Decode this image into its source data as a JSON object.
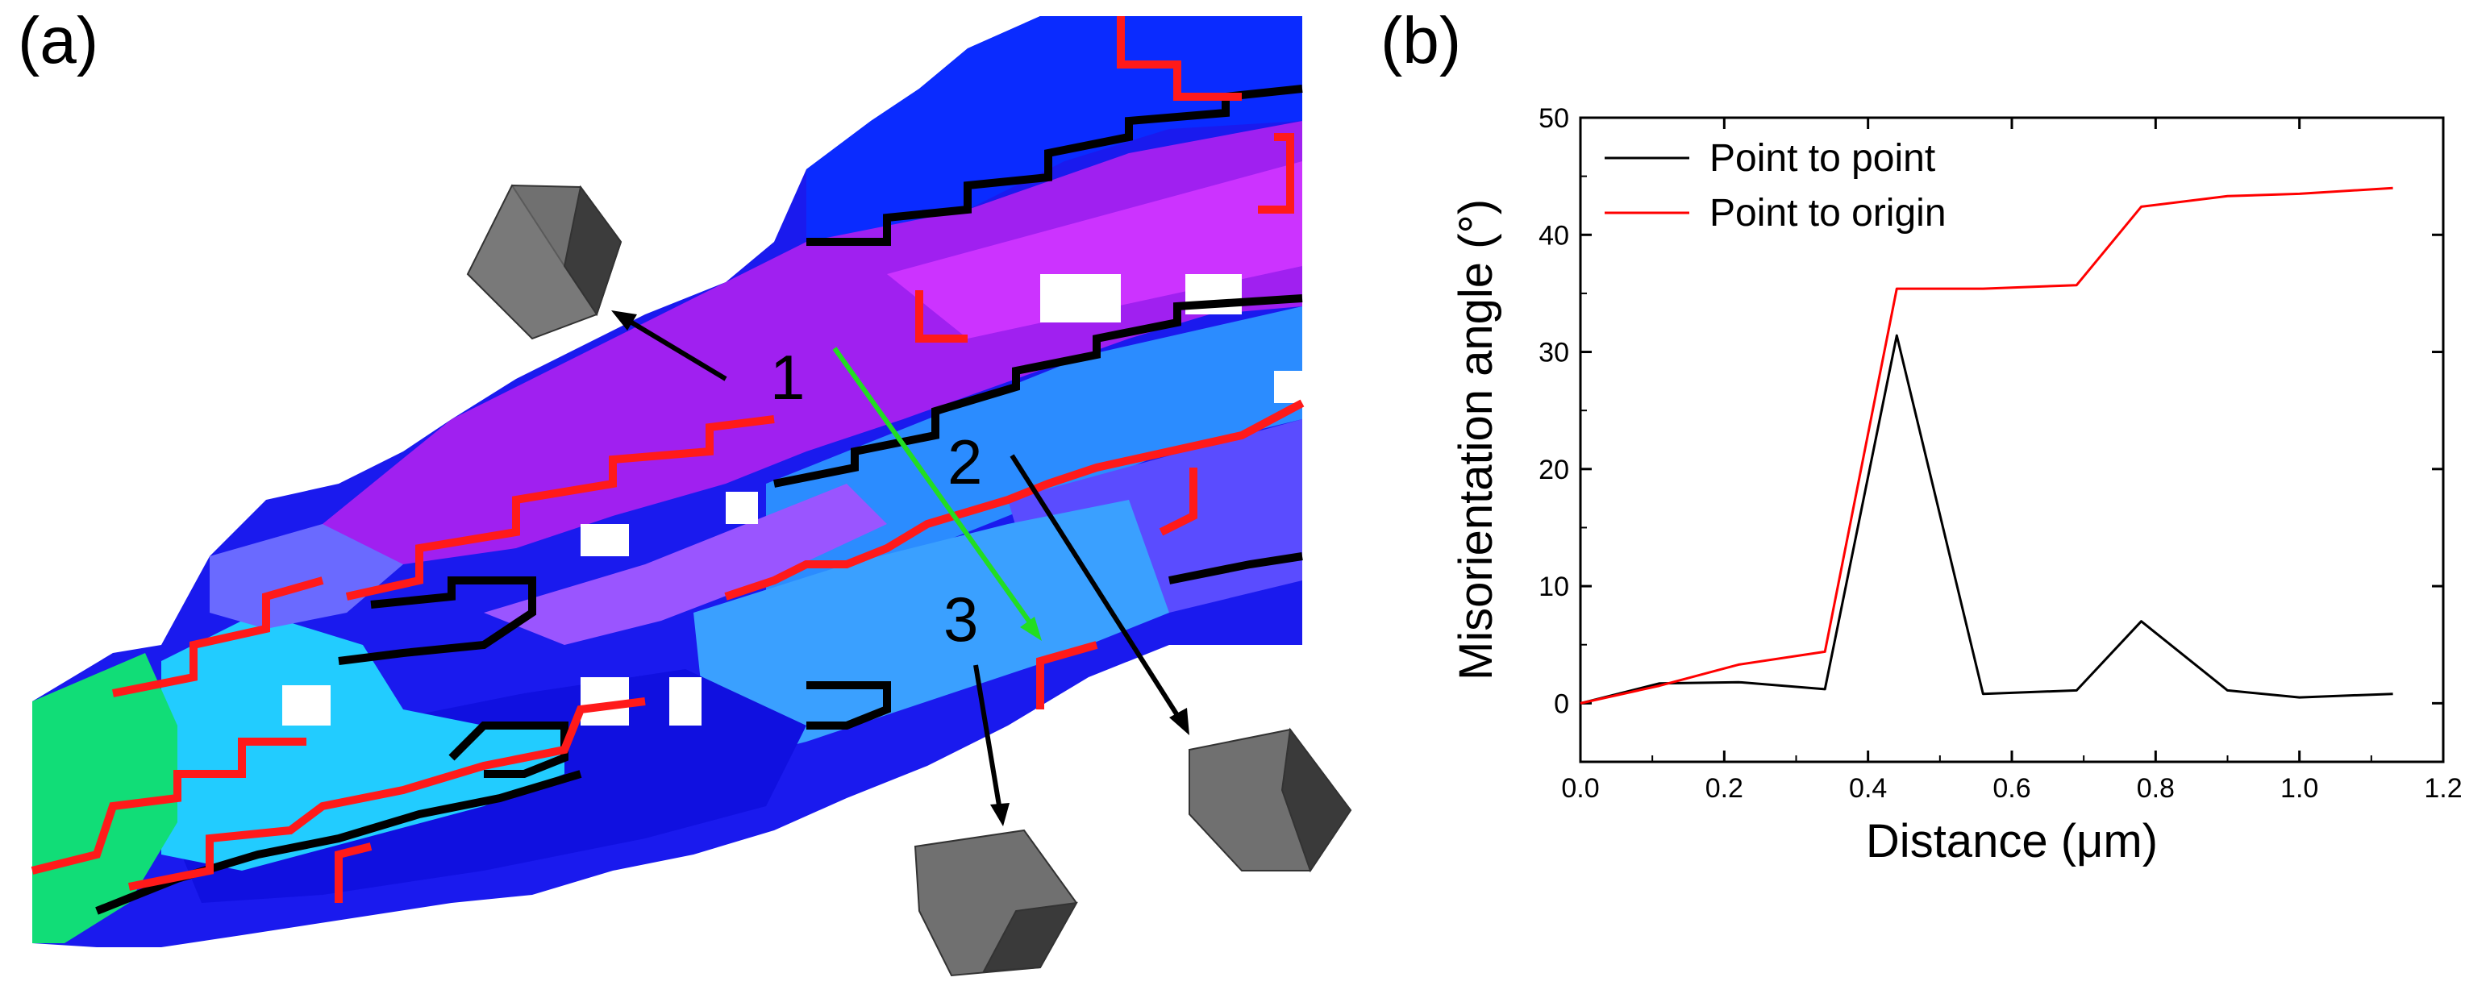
{
  "panel_a": {
    "label": "(a)",
    "markers": [
      "1",
      "2",
      "3"
    ],
    "colors": {
      "boundary_high": "#ff1a1a",
      "boundary_low": "#000000",
      "line_profile": "#22dd22"
    }
  },
  "panel_b": {
    "label": "(b)"
  },
  "chart_data": {
    "type": "line",
    "title": "",
    "xlabel": "Distance (μm)",
    "ylabel": "Misorientation angle (°)",
    "xlim": [
      0.0,
      1.2
    ],
    "ylim": [
      -5,
      50
    ],
    "xticks": [
      0.0,
      0.2,
      0.4,
      0.6,
      0.8,
      1.0,
      1.2
    ],
    "yticks": [
      0,
      10,
      20,
      30,
      40,
      50
    ],
    "xtick_labels": [
      "0.0",
      "0.2",
      "0.4",
      "0.6",
      "0.8",
      "1.0",
      "1.2"
    ],
    "ytick_labels": [
      "0",
      "10",
      "20",
      "30",
      "40",
      "50"
    ],
    "legend_position": "top-left",
    "grid": false,
    "series": [
      {
        "name": "Point to point",
        "color": "#000000",
        "x": [
          0.0,
          0.11,
          0.22,
          0.34,
          0.44,
          0.56,
          0.69,
          0.78,
          0.9,
          1.0,
          1.13
        ],
        "y": [
          0,
          1.7,
          1.8,
          1.2,
          31.4,
          0.8,
          1.1,
          7.0,
          1.1,
          0.5,
          0.8
        ]
      },
      {
        "name": "Point to origin",
        "color": "#ff0000",
        "x": [
          0.0,
          0.11,
          0.22,
          0.34,
          0.44,
          0.56,
          0.69,
          0.78,
          0.9,
          1.0,
          1.13
        ],
        "y": [
          0,
          1.5,
          3.3,
          4.4,
          35.4,
          35.4,
          35.7,
          42.4,
          43.3,
          43.5,
          44.0
        ]
      }
    ]
  }
}
